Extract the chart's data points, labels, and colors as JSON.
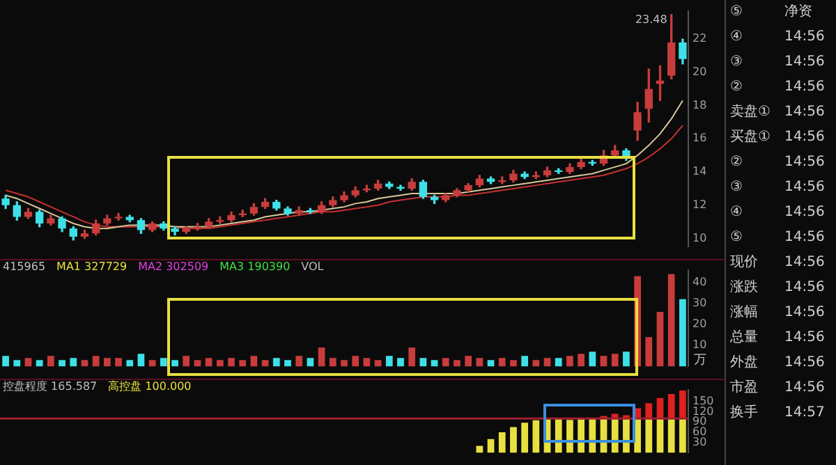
{
  "chart_data": [
    {
      "type": "candlestick",
      "categories": [
        null,
        null,
        null,
        null,
        null,
        null,
        null,
        null,
        null,
        null,
        null,
        null,
        null,
        null,
        null,
        null,
        null,
        null,
        null,
        null,
        null,
        null,
        null,
        null,
        null,
        null,
        null,
        null,
        null,
        null,
        null,
        null,
        null,
        null,
        null,
        null,
        null,
        null,
        null,
        null,
        null,
        null,
        null,
        null,
        null,
        null,
        null,
        null,
        null,
        null,
        null,
        null,
        null,
        null,
        null,
        null,
        null,
        null,
        null,
        null,
        null
      ],
      "ohlc": [
        [
          12.4,
          12.6,
          11.8,
          12.0
        ],
        [
          12.0,
          12.2,
          11.1,
          11.3
        ],
        [
          11.3,
          11.8,
          11.2,
          11.6
        ],
        [
          11.6,
          11.7,
          10.7,
          10.9
        ],
        [
          10.9,
          11.4,
          10.8,
          11.2
        ],
        [
          11.2,
          11.3,
          10.4,
          10.6
        ],
        [
          10.6,
          10.7,
          9.9,
          10.1
        ],
        [
          10.1,
          10.5,
          10.0,
          10.3
        ],
        [
          10.3,
          11.1,
          10.2,
          10.9
        ],
        [
          10.9,
          11.4,
          10.8,
          11.2
        ],
        [
          11.2,
          11.5,
          11.1,
          11.3
        ],
        [
          11.3,
          11.4,
          11.0,
          11.1
        ],
        [
          11.1,
          11.2,
          10.3,
          10.5
        ],
        [
          10.5,
          11.0,
          10.4,
          10.9
        ],
        [
          10.9,
          11.0,
          10.5,
          10.6
        ],
        [
          10.6,
          10.7,
          10.2,
          10.4
        ],
        [
          10.4,
          10.7,
          10.3,
          10.6
        ],
        [
          10.6,
          10.9,
          10.5,
          10.7
        ],
        [
          10.7,
          11.2,
          10.6,
          11.0
        ],
        [
          11.0,
          11.3,
          10.9,
          11.1
        ],
        [
          11.1,
          11.6,
          11.0,
          11.4
        ],
        [
          11.4,
          11.7,
          11.3,
          11.5
        ],
        [
          11.5,
          12.1,
          11.4,
          11.9
        ],
        [
          11.9,
          12.4,
          11.8,
          12.2
        ],
        [
          12.2,
          12.3,
          11.7,
          11.8
        ],
        [
          11.8,
          11.9,
          11.4,
          11.5
        ],
        [
          11.5,
          11.9,
          11.4,
          11.7
        ],
        [
          11.7,
          11.8,
          11.5,
          11.6
        ],
        [
          11.6,
          12.2,
          11.5,
          12.0
        ],
        [
          12.0,
          12.5,
          11.9,
          12.3
        ],
        [
          12.3,
          12.8,
          12.2,
          12.6
        ],
        [
          12.6,
          13.1,
          12.5,
          12.9
        ],
        [
          12.9,
          13.2,
          12.8,
          13.0
        ],
        [
          13.0,
          13.5,
          12.9,
          13.3
        ],
        [
          13.3,
          13.4,
          13.0,
          13.1
        ],
        [
          13.1,
          13.2,
          12.9,
          13.0
        ],
        [
          13.0,
          13.6,
          12.9,
          13.4
        ],
        [
          13.4,
          13.5,
          12.4,
          12.5
        ],
        [
          12.5,
          12.6,
          12.1,
          12.3
        ],
        [
          12.3,
          12.7,
          12.2,
          12.6
        ],
        [
          12.6,
          13.0,
          12.5,
          12.9
        ],
        [
          12.9,
          13.3,
          12.8,
          13.2
        ],
        [
          13.2,
          13.8,
          13.1,
          13.6
        ],
        [
          13.6,
          13.7,
          13.3,
          13.4
        ],
        [
          13.4,
          13.7,
          13.3,
          13.5
        ],
        [
          13.5,
          14.1,
          13.4,
          13.9
        ],
        [
          13.9,
          14.0,
          13.6,
          13.7
        ],
        [
          13.7,
          14.0,
          13.6,
          13.8
        ],
        [
          13.8,
          14.3,
          13.7,
          14.1
        ],
        [
          14.1,
          14.2,
          13.9,
          14.0
        ],
        [
          14.0,
          14.5,
          13.9,
          14.3
        ],
        [
          14.3,
          14.8,
          14.2,
          14.6
        ],
        [
          14.6,
          14.7,
          14.4,
          14.5
        ],
        [
          14.5,
          15.3,
          14.4,
          15.0
        ],
        [
          15.0,
          15.6,
          14.9,
          15.3
        ],
        [
          15.3,
          15.4,
          14.7,
          14.9
        ],
        [
          16.5,
          18.2,
          15.9,
          17.6
        ],
        [
          17.8,
          20.2,
          17.0,
          19.0
        ],
        [
          19.3,
          20.4,
          18.3,
          19.5
        ],
        [
          19.8,
          23.48,
          19.6,
          21.8
        ],
        [
          21.8,
          22.0,
          20.5,
          20.8
        ]
      ],
      "colors": [
        "#3ee0e8",
        "#3ee0e8",
        "#c83c3c",
        "#3ee0e8",
        "#c83c3c",
        "#3ee0e8",
        "#3ee0e8",
        "#c83c3c",
        "#c83c3c",
        "#c83c3c",
        "#c83c3c",
        "#3ee0e8",
        "#3ee0e8",
        "#c83c3c",
        "#3ee0e8",
        "#3ee0e8",
        "#c83c3c",
        "#c83c3c",
        "#c83c3c",
        "#c83c3c",
        "#c83c3c",
        "#c83c3c",
        "#c83c3c",
        "#c83c3c",
        "#3ee0e8",
        "#3ee0e8",
        "#c83c3c",
        "#3ee0e8",
        "#c83c3c",
        "#c83c3c",
        "#c83c3c",
        "#c83c3c",
        "#c83c3c",
        "#c83c3c",
        "#3ee0e8",
        "#3ee0e8",
        "#c83c3c",
        "#3ee0e8",
        "#3ee0e8",
        "#c83c3c",
        "#c83c3c",
        "#c83c3c",
        "#c83c3c",
        "#3ee0e8",
        "#c83c3c",
        "#c83c3c",
        "#3ee0e8",
        "#c83c3c",
        "#c83c3c",
        "#3ee0e8",
        "#c83c3c",
        "#c83c3c",
        "#3ee0e8",
        "#c83c3c",
        "#c83c3c",
        "#3ee0e8",
        "#c83c3c",
        "#c83c3c",
        "#c83c3c",
        "#c83c3c",
        "#3ee0e8"
      ],
      "series": [
        {
          "type": "line",
          "color": "#d8c89a",
          "values": [
            12.6,
            12.4,
            12.1,
            11.8,
            11.5,
            11.2,
            10.9,
            10.7,
            10.6,
            10.6,
            10.7,
            10.8,
            10.8,
            10.8,
            10.8,
            10.7,
            10.7,
            10.7,
            10.7,
            10.8,
            10.9,
            11.0,
            11.1,
            11.3,
            11.4,
            11.5,
            11.6,
            11.6,
            11.7,
            11.8,
            11.9,
            12.1,
            12.2,
            12.4,
            12.5,
            12.6,
            12.7,
            12.7,
            12.7,
            12.7,
            12.7,
            12.8,
            12.9,
            13.0,
            13.1,
            13.2,
            13.3,
            13.4,
            13.5,
            13.6,
            13.7,
            13.8,
            13.9,
            14.1,
            14.3,
            14.5,
            15.0,
            15.6,
            16.3,
            17.2,
            18.3
          ]
        },
        {
          "type": "line",
          "color": "#c83030",
          "values": [
            12.9,
            12.7,
            12.5,
            12.2,
            11.9,
            11.6,
            11.3,
            11.0,
            10.8,
            10.7,
            10.7,
            10.7,
            10.7,
            10.7,
            10.7,
            10.7,
            10.6,
            10.6,
            10.6,
            10.7,
            10.8,
            10.9,
            11.0,
            11.1,
            11.2,
            11.3,
            11.4,
            11.5,
            11.6,
            11.6,
            11.7,
            11.8,
            11.9,
            12.0,
            12.2,
            12.3,
            12.4,
            12.5,
            12.5,
            12.5,
            12.6,
            12.6,
            12.7,
            12.8,
            12.9,
            13.0,
            13.1,
            13.2,
            13.3,
            13.4,
            13.5,
            13.6,
            13.7,
            13.8,
            14.0,
            14.2,
            14.5,
            14.9,
            15.4,
            16.0,
            16.8
          ]
        }
      ],
      "marker": "none",
      "ylim": [
        9.5,
        23.7
      ],
      "yticks": [
        10,
        12,
        14,
        16,
        18,
        20,
        22
      ],
      "tick_labels": "y",
      "annotations": [
        "23.48"
      ]
    },
    {
      "type": "bar",
      "categories": [
        null,
        null,
        null,
        null,
        null,
        null,
        null,
        null,
        null,
        null,
        null,
        null,
        null,
        null,
        null,
        null,
        null,
        null,
        null,
        null,
        null,
        null,
        null,
        null,
        null,
        null,
        null,
        null,
        null,
        null,
        null,
        null,
        null,
        null,
        null,
        null,
        null,
        null,
        null,
        null,
        null,
        null,
        null,
        null,
        null,
        null,
        null,
        null,
        null,
        null,
        null,
        null,
        null,
        null,
        null,
        null,
        null,
        null,
        null,
        null,
        null
      ],
      "values": [
        5,
        3,
        4,
        3,
        5,
        3,
        4,
        3,
        5,
        4,
        4,
        3,
        6,
        3,
        4,
        3,
        5,
        3,
        4,
        3,
        4,
        3,
        5,
        3,
        4,
        3,
        5,
        4,
        9,
        4,
        3,
        5,
        4,
        3,
        5,
        4,
        9,
        4,
        3,
        4,
        3,
        5,
        4,
        3,
        4,
        3,
        5,
        3,
        4,
        4,
        5,
        6,
        7,
        5,
        6,
        7,
        43,
        14,
        26,
        44,
        32
      ],
      "colors": [
        "#3ee0e8",
        "#3ee0e8",
        "#c83c3c",
        "#3ee0e8",
        "#c83c3c",
        "#3ee0e8",
        "#3ee0e8",
        "#c83c3c",
        "#c83c3c",
        "#c83c3c",
        "#c83c3c",
        "#3ee0e8",
        "#3ee0e8",
        "#c83c3c",
        "#3ee0e8",
        "#3ee0e8",
        "#c83c3c",
        "#c83c3c",
        "#c83c3c",
        "#c83c3c",
        "#c83c3c",
        "#c83c3c",
        "#c83c3c",
        "#c83c3c",
        "#3ee0e8",
        "#3ee0e8",
        "#c83c3c",
        "#3ee0e8",
        "#c83c3c",
        "#c83c3c",
        "#c83c3c",
        "#c83c3c",
        "#c83c3c",
        "#c83c3c",
        "#3ee0e8",
        "#3ee0e8",
        "#c83c3c",
        "#3ee0e8",
        "#3ee0e8",
        "#c83c3c",
        "#c83c3c",
        "#c83c3c",
        "#c83c3c",
        "#3ee0e8",
        "#c83c3c",
        "#c83c3c",
        "#3ee0e8",
        "#c83c3c",
        "#c83c3c",
        "#3ee0e8",
        "#c83c3c",
        "#c83c3c",
        "#3ee0e8",
        "#c83c3c",
        "#c83c3c",
        "#3ee0e8",
        "#c83c3c",
        "#c83c3c",
        "#c83c3c",
        "#c83c3c",
        "#3ee0e8"
      ],
      "ylim": [
        0,
        46
      ],
      "yticks": [
        10,
        20,
        30,
        40
      ],
      "ylabel": "万",
      "tick_labels": "y",
      "annotations": [
        "415965",
        "MA1 327729",
        "MA2 302509",
        "MA3 190390",
        "VOL"
      ]
    },
    {
      "type": "bar",
      "stacked": true,
      "categories": [
        null,
        null,
        null,
        null,
        null,
        null,
        null,
        null,
        null,
        null,
        null,
        null,
        null,
        null,
        null,
        null,
        null,
        null,
        null,
        null,
        null,
        null,
        null,
        null,
        null,
        null,
        null,
        null,
        null,
        null,
        null,
        null,
        null,
        null,
        null,
        null,
        null,
        null,
        null,
        null,
        null,
        null,
        null,
        null,
        null,
        null,
        null,
        null,
        null,
        null,
        null,
        null,
        null,
        null,
        null,
        null,
        null,
        null,
        null,
        null,
        null
      ],
      "series": [
        {
          "color": "#e8e040",
          "values": [
            null,
            null,
            null,
            null,
            null,
            null,
            null,
            null,
            null,
            null,
            null,
            null,
            null,
            null,
            null,
            null,
            null,
            null,
            null,
            null,
            null,
            null,
            null,
            null,
            null,
            null,
            null,
            null,
            null,
            null,
            null,
            null,
            null,
            null,
            null,
            null,
            null,
            null,
            null,
            null,
            null,
            null,
            20,
            40,
            60,
            75,
            88,
            95,
            98,
            98,
            96,
            98,
            100,
            100,
            100,
            100,
            100,
            100,
            100,
            100,
            100
          ]
        },
        {
          "color": "#e02020",
          "values": [
            null,
            null,
            null,
            null,
            null,
            null,
            null,
            null,
            null,
            null,
            null,
            null,
            null,
            null,
            null,
            null,
            null,
            null,
            null,
            null,
            null,
            null,
            null,
            null,
            null,
            null,
            null,
            null,
            null,
            null,
            null,
            null,
            null,
            null,
            null,
            null,
            null,
            null,
            null,
            null,
            null,
            null,
            null,
            null,
            null,
            null,
            null,
            null,
            null,
            null,
            null,
            null,
            null,
            8,
            14,
            10,
            30,
            45,
            60,
            72,
            82
          ]
        }
      ],
      "ylim": [
        0,
        185
      ],
      "yticks": [
        30,
        60,
        90,
        120,
        150
      ],
      "tick_labels": "y",
      "ref_lines": [
        {
          "axis": "y",
          "value": 100,
          "color": "#a02030"
        }
      ],
      "annotations": [
        "控盘程度 165.587",
        "高控盘 100.000"
      ]
    },
    {
      "type": "other",
      "annotations": [
        "⑤",
        "④",
        "③",
        "②",
        "卖盘①",
        "买盘①",
        "②",
        "③",
        "④",
        "⑤",
        "现价",
        "涨跌",
        "涨幅",
        "总量",
        "外盘",
        "市盈",
        "换手",
        "净资",
        "14:56",
        "14:56",
        "14:56",
        "14:56",
        "14:56",
        "14:56",
        "14:56",
        "14:56",
        "14:56",
        "14:56",
        "14:56",
        "14:56",
        "14:56",
        "14:56",
        "14:56",
        "14:57"
      ]
    }
  ]
}
